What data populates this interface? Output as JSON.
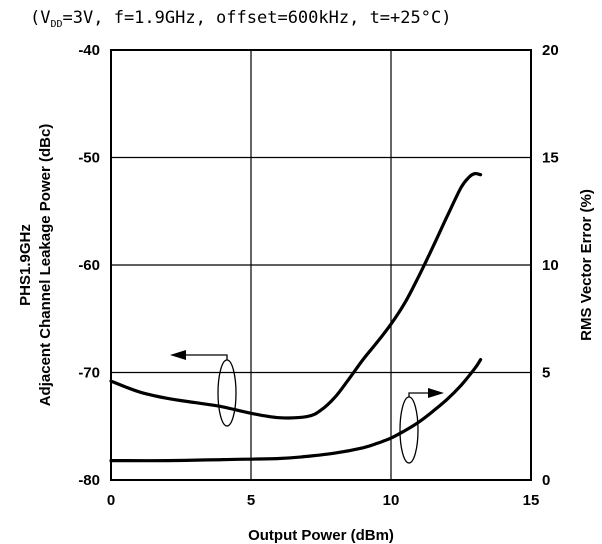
{
  "chart_data": {
    "type": "line",
    "subtitle": "(V  =3V, f=1.9GHz, offset=600kHz, t=+25°C)",
    "subtitle_parts": {
      "open": "(V",
      "sub": "DD",
      "rest": "=3V, f=1.9GHz, offset=600kHz, t=+25°C)"
    },
    "xlabel": "Output Power (dBm)",
    "ylabel_left_line1": "PHS1.9GHz",
    "ylabel_left_line2": "Adjacent Channel Leakage Power (dBc)",
    "ylabel_right": "RMS Vector Error (%)",
    "xlim": [
      0,
      15
    ],
    "ylim_left": [
      -80,
      -40
    ],
    "ylim_right": [
      0,
      20
    ],
    "x_ticks": [
      "0",
      "5",
      "10",
      "15"
    ],
    "y_left_ticks": [
      "-40",
      "-50",
      "-60",
      "-70",
      "-80"
    ],
    "y_right_ticks": [
      "20",
      "15",
      "10",
      "5",
      "0"
    ],
    "grid": true,
    "series": [
      {
        "axis": "left",
        "x": [
          0,
          1,
          2,
          3,
          4,
          5,
          6,
          7,
          7.5,
          8,
          8.5,
          9,
          9.5,
          10,
          10.5,
          11,
          11.5,
          12,
          12.5,
          12.8,
          13,
          13.2
        ],
        "y": [
          -70.8,
          -71.8,
          -72.4,
          -72.8,
          -73.2,
          -73.8,
          -74.2,
          -74.1,
          -73.5,
          -72.3,
          -70.6,
          -68.8,
          -67.2,
          -65.5,
          -63.5,
          -61.0,
          -58.3,
          -55.5,
          -52.8,
          -51.8,
          -51.5,
          -51.6
        ]
      },
      {
        "axis": "right",
        "x": [
          0,
          2,
          4,
          6,
          7,
          8,
          9,
          9.5,
          10,
          10.5,
          11,
          11.5,
          12,
          12.5,
          13,
          13.2
        ],
        "y": [
          0.9,
          0.9,
          0.95,
          1.0,
          1.1,
          1.25,
          1.5,
          1.7,
          1.95,
          2.3,
          2.7,
          3.2,
          3.75,
          4.4,
          5.2,
          5.6
        ]
      }
    ]
  }
}
